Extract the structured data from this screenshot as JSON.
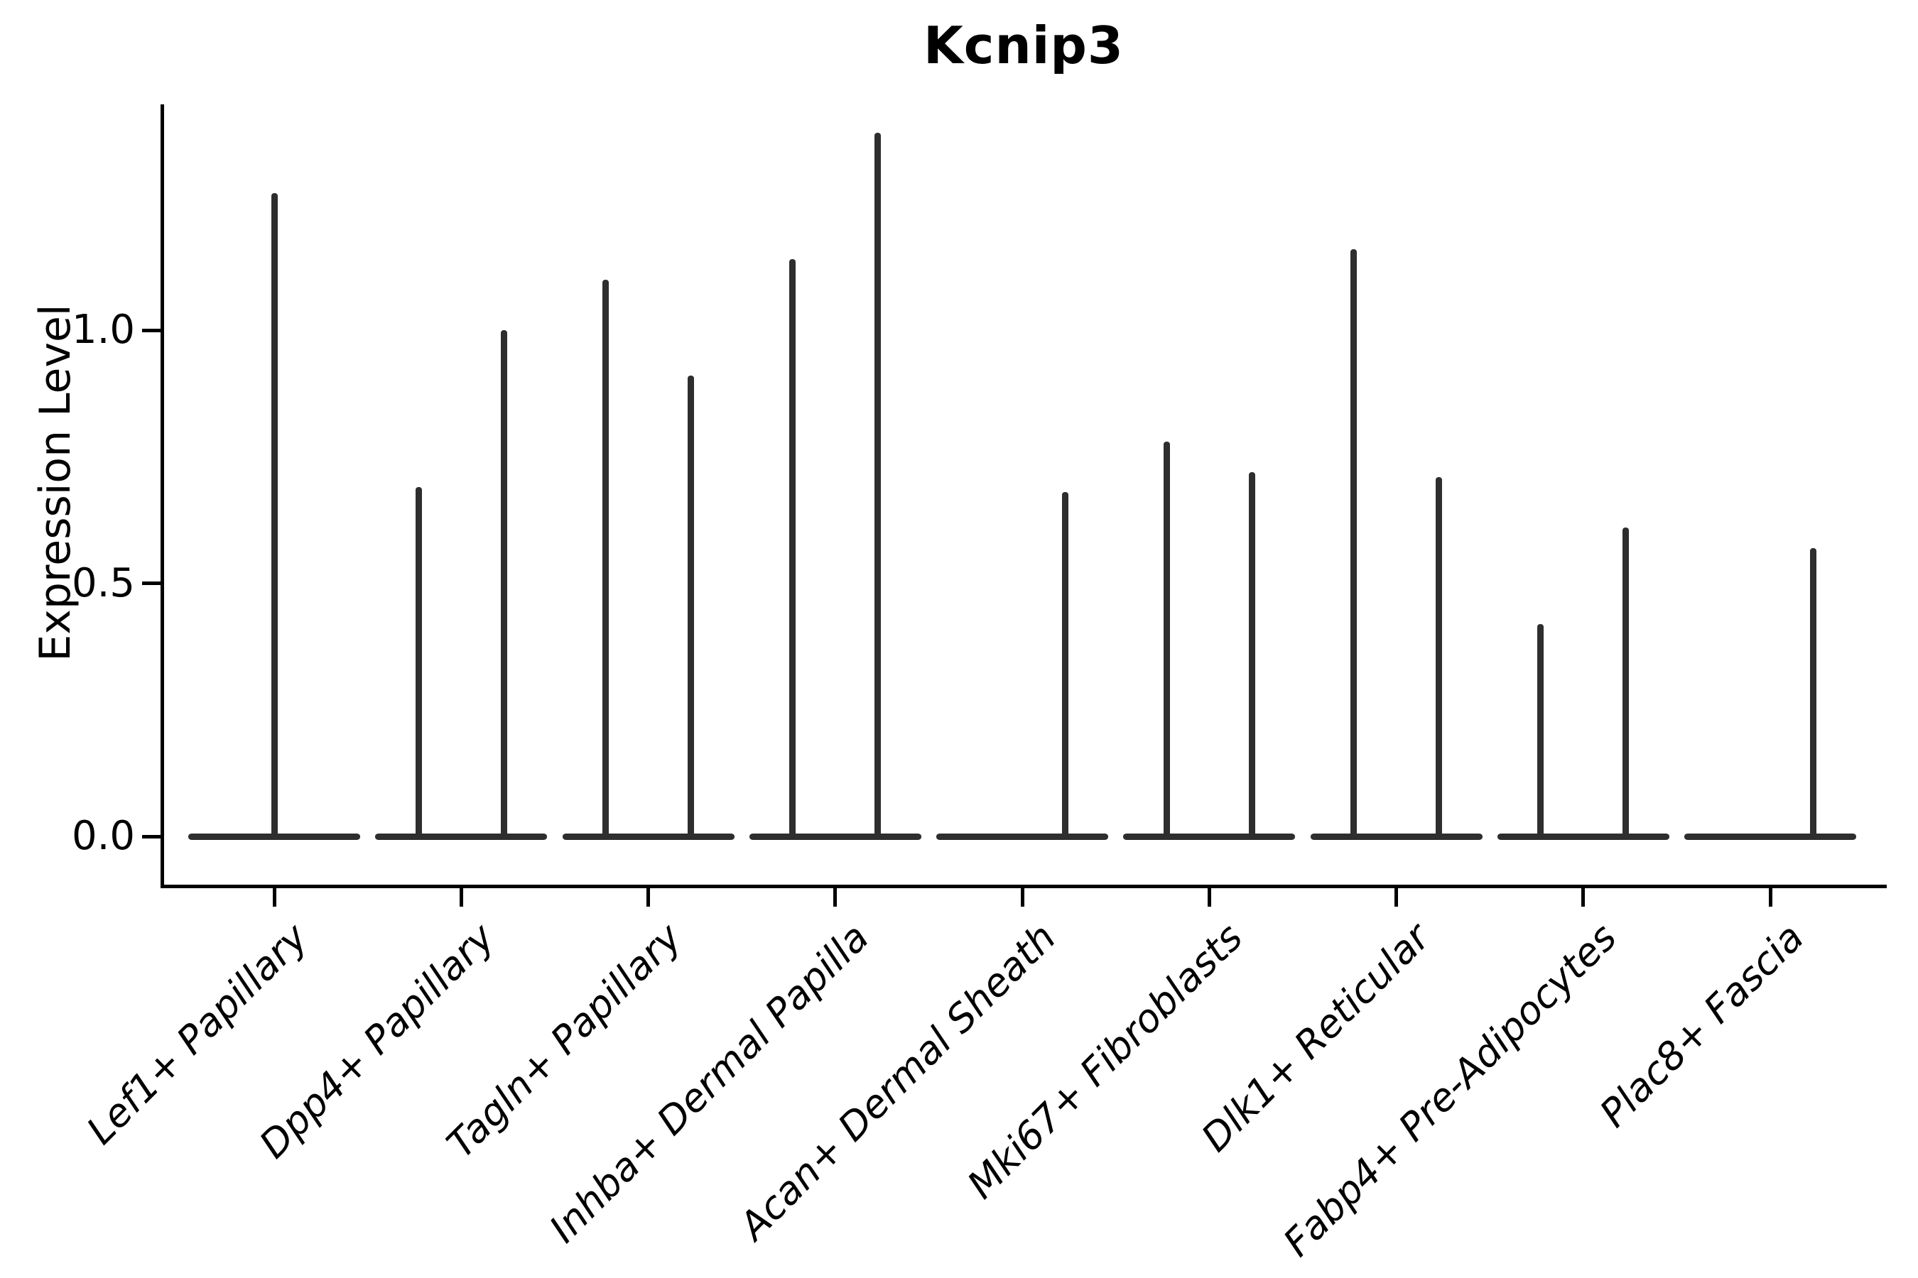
{
  "title": "Kcnip3",
  "y_axis": {
    "label": "Expression Level",
    "tick_labels": [
      "0.0",
      "0.5",
      "1.0"
    ],
    "tick_values": [
      0.0,
      0.5,
      1.0
    ]
  },
  "colors": {
    "background": "#ffffff",
    "axis": "#000000",
    "violin_stroke": "#2e2e2e",
    "text": "#000000"
  },
  "chart_data": {
    "type": "violin",
    "title": "Kcnip3",
    "xlabel": "",
    "ylabel": "Expression Level",
    "ylim": [
      0,
      1.45
    ],
    "yticks": [
      0.0,
      0.5,
      1.0
    ],
    "grid": false,
    "legend_position": "none",
    "note": "Single-cell expression violin plot; nearly all density sits at 0 (flat bases) with thin spikes reaching each violin's maximum expression value. Categories with two violins hold two dodged groups.",
    "categories": [
      "Lef1+ Papillary",
      "Dpp4+ Papillary",
      "Tagln+ Papillary",
      "Inhba+ Dermal Papilla",
      "Acan+ Dermal Sheath",
      "Mki67+ Fibroblasts",
      "Dlk1+ Reticular",
      "Fabp4+ Pre-Adipocytes",
      "Plac8+ Fascia"
    ],
    "series": [
      {
        "category": "Lef1+ Papillary",
        "baseline_value": 0.0,
        "violins": [
          {
            "position": "center",
            "peak": 1.27
          }
        ]
      },
      {
        "category": "Dpp4+ Papillary",
        "baseline_value": 0.0,
        "violins": [
          {
            "position": "left",
            "peak": 0.69
          },
          {
            "position": "right",
            "peak": 1.0
          }
        ]
      },
      {
        "category": "Tagln+ Papillary",
        "baseline_value": 0.0,
        "violins": [
          {
            "position": "left",
            "peak": 1.1
          },
          {
            "position": "right",
            "peak": 0.91
          }
        ]
      },
      {
        "category": "Inhba+ Dermal Papilla",
        "baseline_value": 0.0,
        "violins": [
          {
            "position": "left",
            "peak": 1.14
          },
          {
            "position": "right",
            "peak": 1.39
          }
        ]
      },
      {
        "category": "Acan+ Dermal Sheath",
        "baseline_value": 0.0,
        "violins": [
          {
            "position": "right",
            "peak": 0.68
          }
        ]
      },
      {
        "category": "Mki67+ Fibroblasts",
        "baseline_value": 0.0,
        "violins": [
          {
            "position": "left",
            "peak": 0.78
          },
          {
            "position": "right",
            "peak": 0.72
          }
        ]
      },
      {
        "category": "Dlk1+ Reticular",
        "baseline_value": 0.0,
        "violins": [
          {
            "position": "left",
            "peak": 1.16
          },
          {
            "position": "right",
            "peak": 0.71
          }
        ]
      },
      {
        "category": "Fabp4+ Pre-Adipocytes",
        "baseline_value": 0.0,
        "violins": [
          {
            "position": "left",
            "peak": 0.42
          },
          {
            "position": "right",
            "peak": 0.61
          }
        ]
      },
      {
        "category": "Plac8+ Fascia",
        "baseline_value": 0.0,
        "violins": [
          {
            "position": "right",
            "peak": 0.57
          }
        ]
      }
    ]
  }
}
